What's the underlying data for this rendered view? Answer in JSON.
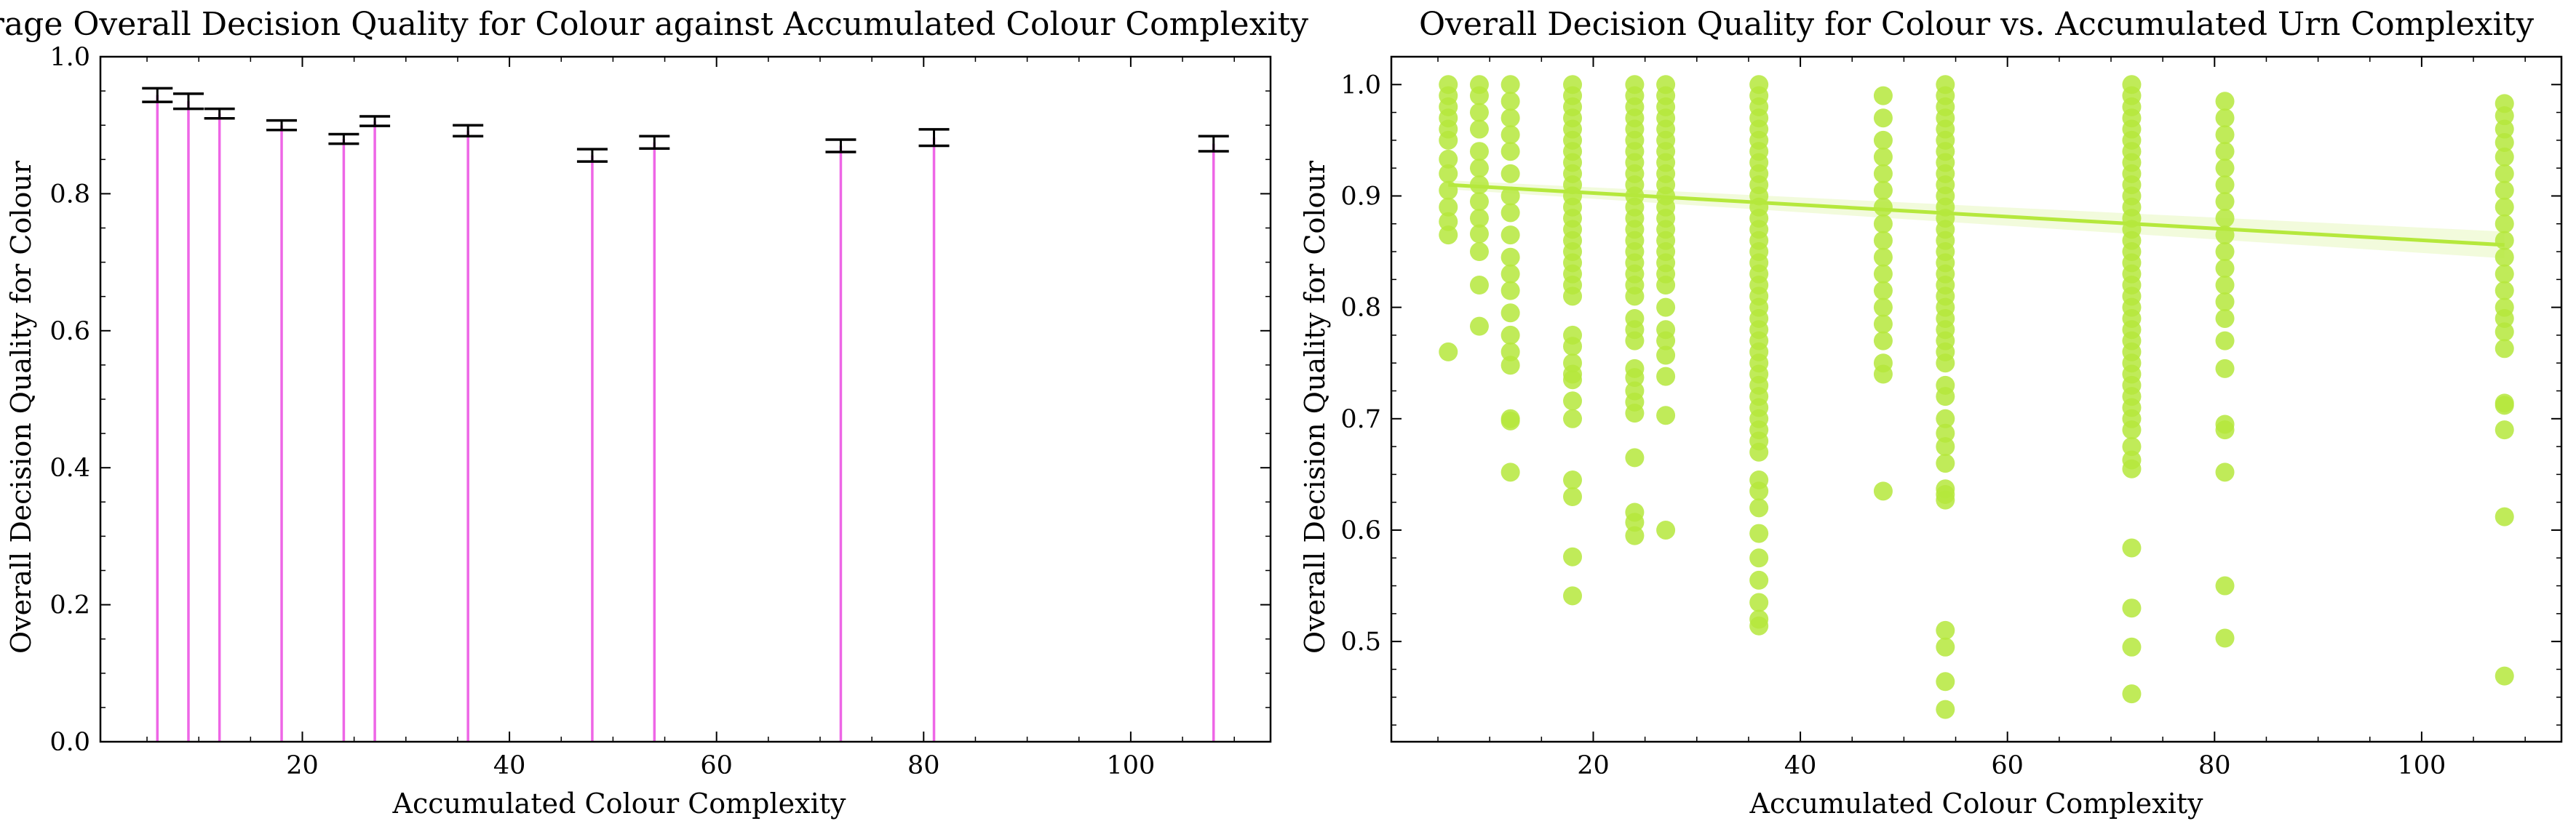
{
  "chart_data": [
    {
      "type": "bar",
      "title": "Average Overall Decision Quality for Colour against Accumulated Colour Complexity",
      "xlabel": "Accumulated Colour Complexity",
      "ylabel": "Overall Decision Quality for Colour",
      "xlim": [
        0.5,
        113.5
      ],
      "ylim": [
        0.0,
        1.0
      ],
      "xticks": [
        "20",
        "40",
        "60",
        "80",
        "100"
      ],
      "yticks": [
        "0.0",
        "0.2",
        "0.4",
        "0.6",
        "0.8",
        "1.0"
      ],
      "bar_color": "#ee66e6",
      "errorbar_color": "#000000",
      "x": [
        6,
        9,
        12,
        18,
        24,
        27,
        36,
        48,
        54,
        72,
        81,
        108
      ],
      "values": [
        0.944,
        0.935,
        0.917,
        0.9,
        0.88,
        0.906,
        0.892,
        0.856,
        0.875,
        0.87,
        0.882,
        0.873
      ],
      "err": [
        0.01,
        0.011,
        0.007,
        0.007,
        0.007,
        0.007,
        0.008,
        0.009,
        0.009,
        0.009,
        0.012,
        0.011
      ]
    },
    {
      "type": "scatter",
      "title": "Overall Decision Quality for Colour vs. Accumulated Urn Complexity",
      "xlabel": "Accumulated Colour Complexity",
      "ylabel": "Overall Decision Quality for Colour",
      "xlim": [
        0.5,
        113.5
      ],
      "ylim": [
        0.41,
        1.025
      ],
      "xticks": [
        "20",
        "40",
        "60",
        "80",
        "100"
      ],
      "yticks": [
        "0.5",
        "0.6",
        "0.7",
        "0.8",
        "0.9",
        "1.0"
      ],
      "color": "#b5e83c",
      "regression": {
        "x": [
          6,
          108
        ],
        "y": [
          0.91,
          0.856
        ]
      },
      "points": [
        {
          "x": 6,
          "y": [
            1.0,
            0.99,
            0.98,
            0.97,
            0.96,
            0.95,
            0.933,
            0.92,
            0.905,
            0.89,
            0.877,
            0.865,
            0.76
          ]
        },
        {
          "x": 9,
          "y": [
            1.0,
            0.99,
            0.975,
            0.96,
            0.94,
            0.925,
            0.91,
            0.895,
            0.88,
            0.866,
            0.85,
            0.82,
            0.783
          ]
        },
        {
          "x": 12,
          "y": [
            1.0,
            0.985,
            0.97,
            0.955,
            0.94,
            0.92,
            0.9,
            0.885,
            0.865,
            0.845,
            0.83,
            0.815,
            0.795,
            0.775,
            0.76,
            0.748,
            0.7,
            0.698,
            0.652
          ]
        },
        {
          "x": 18,
          "y": [
            1.0,
            0.99,
            0.98,
            0.97,
            0.96,
            0.95,
            0.94,
            0.93,
            0.92,
            0.91,
            0.9,
            0.89,
            0.88,
            0.87,
            0.86,
            0.85,
            0.84,
            0.83,
            0.82,
            0.81,
            0.775,
            0.765,
            0.75,
            0.74,
            0.735,
            0.716,
            0.7,
            0.645,
            0.63,
            0.576,
            0.541
          ]
        },
        {
          "x": 24,
          "y": [
            1.0,
            0.99,
            0.98,
            0.97,
            0.96,
            0.95,
            0.94,
            0.93,
            0.92,
            0.91,
            0.9,
            0.89,
            0.88,
            0.87,
            0.86,
            0.85,
            0.84,
            0.83,
            0.82,
            0.81,
            0.79,
            0.78,
            0.77,
            0.745,
            0.737,
            0.725,
            0.715,
            0.705,
            0.665,
            0.616,
            0.607,
            0.595
          ]
        },
        {
          "x": 27,
          "y": [
            1.0,
            0.99,
            0.98,
            0.97,
            0.96,
            0.95,
            0.94,
            0.93,
            0.92,
            0.91,
            0.9,
            0.89,
            0.88,
            0.87,
            0.86,
            0.85,
            0.84,
            0.83,
            0.82,
            0.8,
            0.78,
            0.77,
            0.757,
            0.738,
            0.703,
            0.6
          ]
        },
        {
          "x": 36,
          "y": [
            1.0,
            0.99,
            0.98,
            0.97,
            0.96,
            0.95,
            0.94,
            0.93,
            0.92,
            0.91,
            0.9,
            0.89,
            0.88,
            0.87,
            0.86,
            0.85,
            0.84,
            0.83,
            0.82,
            0.81,
            0.8,
            0.79,
            0.78,
            0.77,
            0.76,
            0.75,
            0.74,
            0.73,
            0.72,
            0.71,
            0.7,
            0.69,
            0.68,
            0.67,
            0.645,
            0.635,
            0.62,
            0.597,
            0.575,
            0.555,
            0.535,
            0.52,
            0.514
          ]
        },
        {
          "x": 48,
          "y": [
            0.99,
            0.97,
            0.95,
            0.935,
            0.92,
            0.905,
            0.89,
            0.875,
            0.86,
            0.845,
            0.83,
            0.815,
            0.8,
            0.785,
            0.77,
            0.75,
            0.74,
            0.635
          ]
        },
        {
          "x": 54,
          "y": [
            1.0,
            0.99,
            0.98,
            0.97,
            0.96,
            0.95,
            0.94,
            0.93,
            0.92,
            0.91,
            0.9,
            0.89,
            0.88,
            0.87,
            0.86,
            0.85,
            0.84,
            0.83,
            0.82,
            0.81,
            0.8,
            0.79,
            0.78,
            0.77,
            0.76,
            0.75,
            0.73,
            0.72,
            0.7,
            0.687,
            0.675,
            0.66,
            0.637,
            0.632,
            0.627,
            0.51,
            0.495,
            0.464,
            0.439
          ]
        },
        {
          "x": 72,
          "y": [
            1.0,
            0.99,
            0.98,
            0.97,
            0.96,
            0.95,
            0.94,
            0.93,
            0.92,
            0.91,
            0.9,
            0.89,
            0.88,
            0.87,
            0.86,
            0.85,
            0.84,
            0.83,
            0.82,
            0.81,
            0.8,
            0.79,
            0.78,
            0.77,
            0.76,
            0.75,
            0.74,
            0.73,
            0.72,
            0.71,
            0.7,
            0.69,
            0.675,
            0.663,
            0.655,
            0.584,
            0.53,
            0.495,
            0.453
          ]
        },
        {
          "x": 81,
          "y": [
            0.985,
            0.97,
            0.955,
            0.94,
            0.925,
            0.91,
            0.895,
            0.88,
            0.865,
            0.85,
            0.835,
            0.82,
            0.805,
            0.79,
            0.77,
            0.745,
            0.695,
            0.69,
            0.652,
            0.55,
            0.503
          ]
        },
        {
          "x": 108,
          "y": [
            0.983,
            0.972,
            0.96,
            0.948,
            0.935,
            0.92,
            0.905,
            0.89,
            0.875,
            0.86,
            0.845,
            0.83,
            0.815,
            0.8,
            0.79,
            0.778,
            0.763,
            0.714,
            0.712,
            0.69,
            0.612,
            0.469
          ]
        }
      ]
    }
  ]
}
